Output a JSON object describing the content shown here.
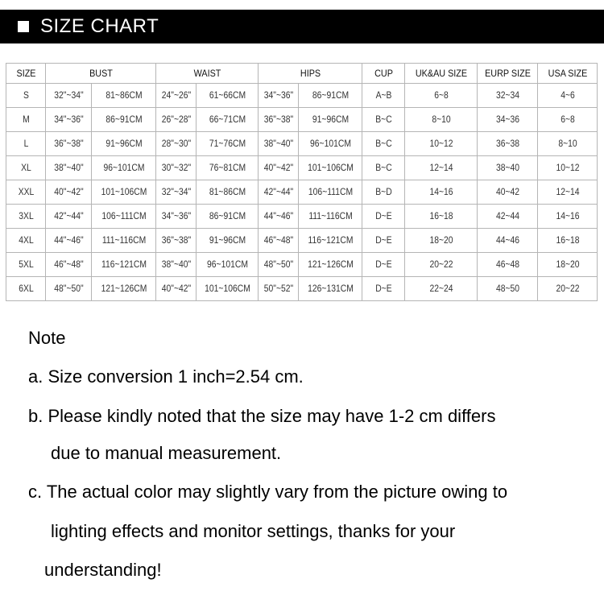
{
  "title": "SIZE CHART",
  "table": {
    "headers": [
      {
        "label": "SIZE",
        "span": 1
      },
      {
        "label": "BUST",
        "span": 2
      },
      {
        "label": "WAIST",
        "span": 2
      },
      {
        "label": "HIPS",
        "span": 2
      },
      {
        "label": "CUP",
        "span": 1
      },
      {
        "label": "UK&AU SIZE",
        "span": 1
      },
      {
        "label": "EURP SIZE",
        "span": 1
      },
      {
        "label": "USA SIZE",
        "span": 1
      }
    ],
    "rows": [
      [
        "S",
        "32\"~34\"",
        "81~86CM",
        "24\"~26\"",
        "61~66CM",
        "34\"~36\"",
        "86~91CM",
        "A~B",
        "6~8",
        "32~34",
        "4~6"
      ],
      [
        "M",
        "34\"~36\"",
        "86~91CM",
        "26\"~28\"",
        "66~71CM",
        "36\"~38\"",
        "91~96CM",
        "B~C",
        "8~10",
        "34~36",
        "6~8"
      ],
      [
        "L",
        "36\"~38\"",
        "91~96CM",
        "28\"~30\"",
        "71~76CM",
        "38\"~40\"",
        "96~101CM",
        "B~C",
        "10~12",
        "36~38",
        "8~10"
      ],
      [
        "XL",
        "38\"~40\"",
        "96~101CM",
        "30\"~32\"",
        "76~81CM",
        "40\"~42\"",
        "101~106CM",
        "B~C",
        "12~14",
        "38~40",
        "10~12"
      ],
      [
        "XXL",
        "40\"~42\"",
        "101~106CM",
        "32\"~34\"",
        "81~86CM",
        "42\"~44\"",
        "106~111CM",
        "B~D",
        "14~16",
        "40~42",
        "12~14"
      ],
      [
        "3XL",
        "42\"~44\"",
        "106~111CM",
        "34\"~36\"",
        "86~91CM",
        "44\"~46\"",
        "111~116CM",
        "D~E",
        "16~18",
        "42~44",
        "14~16"
      ],
      [
        "4XL",
        "44\"~46\"",
        "111~116CM",
        "36\"~38\"",
        "91~96CM",
        "46\"~48\"",
        "116~121CM",
        "D~E",
        "18~20",
        "44~46",
        "16~18"
      ],
      [
        "5XL",
        "46\"~48\"",
        "116~121CM",
        "38\"~40\"",
        "96~101CM",
        "48\"~50\"",
        "121~126CM",
        "D~E",
        "20~22",
        "46~48",
        "18~20"
      ],
      [
        "6XL",
        "48\"~50\"",
        "121~126CM",
        "40\"~42\"",
        "101~106CM",
        "50\"~52\"",
        "126~131CM",
        "D~E",
        "22~24",
        "48~50",
        "20~22"
      ]
    ]
  },
  "notes": {
    "heading": "Note",
    "lines": [
      "a. Size conversion 1 inch=2.54 cm.",
      "b. Please kindly noted that the size may have 1-2 cm differs",
      "due to manual measurement.",
      "c. The actual color may slightly vary from the picture owing to",
      "lighting effects and monitor settings, thanks for your",
      "understanding!"
    ]
  }
}
